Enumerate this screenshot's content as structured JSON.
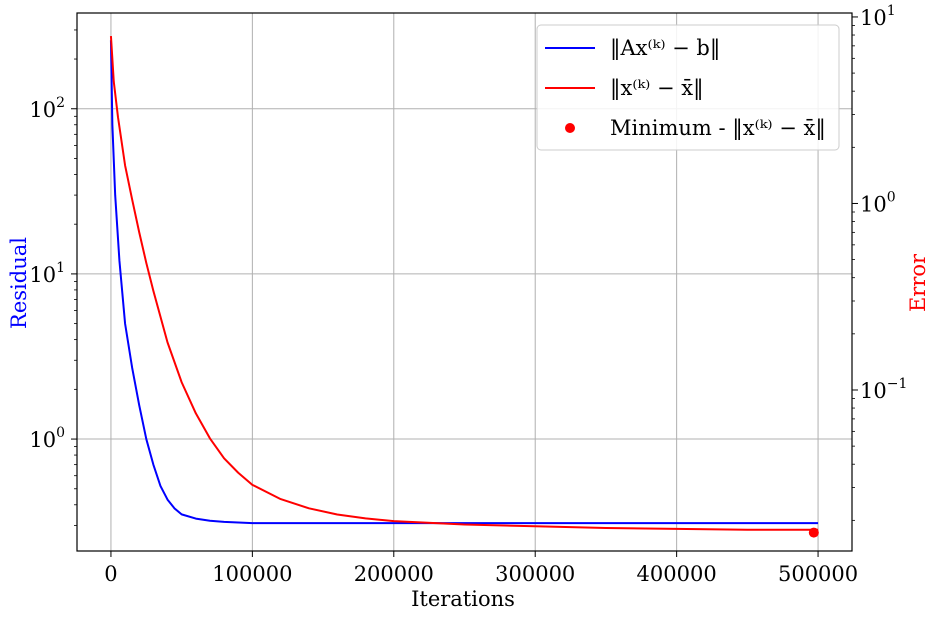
{
  "chart_data": {
    "type": "line",
    "xlabel": "Iterations",
    "ylabel_left": "Residual",
    "ylabel_right": "Error",
    "colors": {
      "residual": "#0000ff",
      "error": "#ff0000",
      "grid": "#b0b0b0"
    },
    "x_ticks": [
      {
        "value": 0,
        "label": "0"
      },
      {
        "value": 100000,
        "label": "100000"
      },
      {
        "value": 200000,
        "label": "200000"
      },
      {
        "value": 300000,
        "label": "300000"
      },
      {
        "value": 400000,
        "label": "400000"
      },
      {
        "value": 500000,
        "label": "500000"
      }
    ],
    "y_left_ticks": [
      {
        "value": 1,
        "base": "10",
        "exp": "0"
      },
      {
        "value": 10,
        "base": "10",
        "exp": "1"
      },
      {
        "value": 100,
        "base": "10",
        "exp": "2"
      }
    ],
    "y_right_ticks": [
      {
        "value": 0.1,
        "base": "10",
        "exp": "−1"
      },
      {
        "value": 1,
        "base": "10",
        "exp": "0"
      },
      {
        "value": 10,
        "base": "10",
        "exp": "1"
      }
    ],
    "x_range": [
      -24000,
      524000
    ],
    "y_left_range": [
      0.21,
      380
    ],
    "y_left_scale": "log",
    "y_right_range": [
      0.0137,
      10.5
    ],
    "y_right_scale": "log",
    "grid": true,
    "legend_position": "top-right",
    "legend": [
      {
        "label": "‖Ax⁽ᵏ⁾ − b‖",
        "kind": "line",
        "color": "#0000ff"
      },
      {
        "label": "‖x⁽ᵏ⁾ − x̄‖",
        "kind": "line",
        "color": "#ff0000"
      },
      {
        "label": "Minimum - ‖x⁽ᵏ⁾ − x̄‖",
        "kind": "marker",
        "color": "#ff0000"
      }
    ],
    "series": [
      {
        "name": "‖Ax⁽ᵏ⁾ − b‖",
        "axis": "left",
        "color": "#0000ff",
        "x": [
          0,
          1000,
          3000,
          6000,
          10000,
          15000,
          20000,
          25000,
          30000,
          35000,
          40000,
          45000,
          50000,
          60000,
          70000,
          80000,
          100000,
          150000,
          200000,
          250000,
          300000,
          350000,
          400000,
          450000,
          500000
        ],
        "y": [
          260,
          80,
          30,
          12,
          5.0,
          2.7,
          1.6,
          1.0,
          0.7,
          0.52,
          0.43,
          0.38,
          0.35,
          0.33,
          0.32,
          0.315,
          0.31,
          0.31,
          0.31,
          0.31,
          0.31,
          0.31,
          0.31,
          0.31,
          0.31
        ]
      },
      {
        "name": "‖x⁽ᵏ⁾ − x̄‖",
        "axis": "right",
        "color": "#ff0000",
        "x": [
          0,
          2000,
          5000,
          10000,
          15000,
          20000,
          25000,
          30000,
          40000,
          50000,
          60000,
          70000,
          80000,
          90000,
          100000,
          120000,
          140000,
          160000,
          180000,
          200000,
          250000,
          300000,
          350000,
          400000,
          450000,
          500000
        ],
        "y": [
          7.9,
          4.5,
          2.9,
          1.6,
          1.05,
          0.7,
          0.48,
          0.34,
          0.18,
          0.11,
          0.075,
          0.055,
          0.043,
          0.036,
          0.031,
          0.026,
          0.0232,
          0.0215,
          0.0205,
          0.0198,
          0.019,
          0.0186,
          0.0182,
          0.018,
          0.0178,
          0.0178
        ]
      },
      {
        "name": "Minimum - ‖x⁽ᵏ⁾ − x̄‖",
        "axis": "right",
        "type": "scatter",
        "color": "#ff0000",
        "x": [
          497000
        ],
        "y": [
          0.0172
        ]
      }
    ]
  }
}
